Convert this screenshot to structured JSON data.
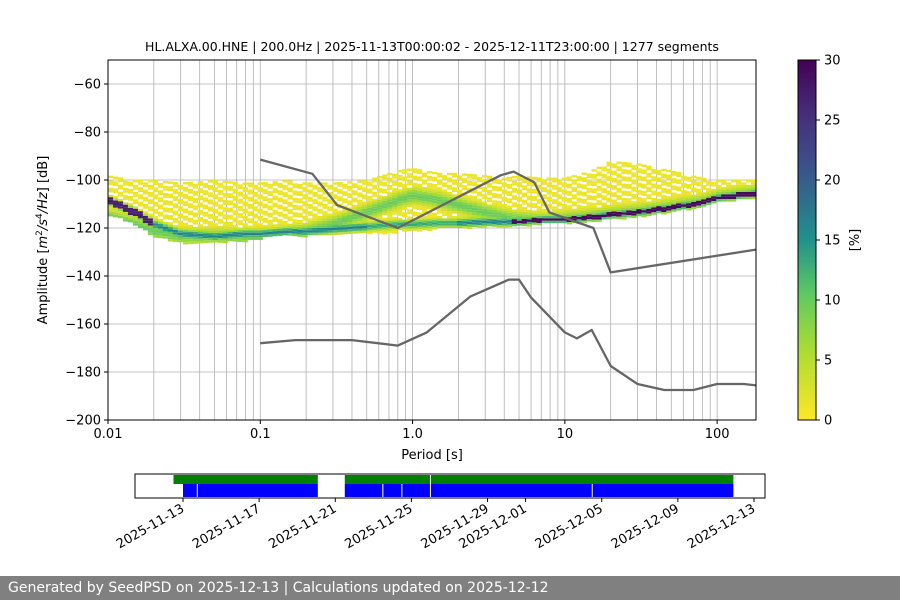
{
  "chart_data": [
    {
      "type": "heatmap",
      "title": "HL.ALXA.00.HNE | 200.0Hz | 2025-11-13T00:00:02 - 2025-12-11T23:00:00 | 1277 segments",
      "xlabel": "Period [s]",
      "ylabel": "Amplitude [m²/s⁴/Hz] [dB]",
      "xscale": "log",
      "xlim": [
        0.01,
        180
      ],
      "ylim": [
        -200,
        -50
      ],
      "xticks": [
        0.01,
        0.1,
        1,
        10,
        100
      ],
      "xtick_labels": [
        "0.01",
        "0.1",
        "1.0",
        "10",
        "100"
      ],
      "yticks": [
        -200,
        -180,
        -160,
        -140,
        -120,
        -100,
        -80,
        -60
      ],
      "ytick_labels": [
        "−200",
        "−180",
        "−160",
        "−140",
        "−120",
        "−100",
        "−80",
        "−60"
      ],
      "grid": true,
      "colorbar": {
        "label": "[%]",
        "colormap": "viridis_r",
        "range": [
          0,
          30
        ],
        "ticks": [
          0,
          5,
          10,
          15,
          20,
          25,
          30
        ],
        "tick_labels": [
          "0",
          "5",
          "10",
          "15",
          "20",
          "25",
          "30"
        ]
      },
      "psd_band": {
        "description": "probability density of PSD values",
        "periods": [
          0.01,
          0.015,
          0.02,
          0.03,
          0.05,
          0.08,
          0.1,
          0.15,
          0.2,
          0.3,
          0.5,
          0.8,
          1.0,
          1.5,
          2.0,
          3.0,
          4.0,
          5.0,
          7.0,
          10,
          15,
          20,
          30,
          50,
          80,
          100,
          180
        ],
        "mode_db": [
          -108,
          -113,
          -118,
          -122,
          -123,
          -122,
          -122,
          -121,
          -121,
          -120,
          -119,
          -118,
          -118,
          -117.5,
          -117.5,
          -117,
          -117,
          -117,
          -116,
          -116,
          -115,
          -114,
          -113,
          -111,
          -109,
          -107,
          -105
        ],
        "upper_db": [
          -98,
          -100,
          -100,
          -101,
          -100,
          -101,
          -101,
          -100,
          -101,
          -101,
          -100,
          -96,
          -95,
          -97,
          -97,
          -98,
          -99,
          -98,
          -99,
          -99,
          -96,
          -92,
          -93,
          -96,
          -99,
          -100,
          -100
        ],
        "lower_db": [
          -114,
          -118,
          -123,
          -126,
          -126,
          -125,
          -124,
          -123,
          -123,
          -122,
          -122,
          -122,
          -121,
          -120,
          -120,
          -119,
          -119,
          -119,
          -118,
          -118,
          -117,
          -116,
          -115,
          -113,
          -111,
          -109,
          -107
        ],
        "high_density_db": [
          -115,
          -118,
          -121,
          -123,
          -123,
          -123,
          -123,
          -122,
          -121,
          -118,
          -113,
          -108,
          -106,
          -108,
          -110,
          -113,
          -115,
          -116,
          -116.5,
          -116,
          -115,
          -114,
          -113,
          -111,
          -109,
          -107,
          -105
        ]
      },
      "series": [
        {
          "x": [
            0.1,
            0.22,
            0.32,
            0.8,
            3.8,
            4.6,
            6.3,
            7.9,
            15.4,
            20,
            180
          ],
          "y": [
            -91.5,
            -97.4,
            -110.5,
            -120,
            -98,
            -96.5,
            -101,
            -113.5,
            -120,
            -138.5,
            -129
          ],
          "color": "#666666"
        },
        {
          "x": [
            0.1,
            0.17,
            0.4,
            0.8,
            1.24,
            2.4,
            4.3,
            5.0,
            6.0,
            10,
            12,
            15,
            20,
            30,
            45,
            70,
            100,
            150,
            180
          ],
          "y": [
            -168,
            -166.7,
            -166.7,
            -169,
            -163.5,
            -148.5,
            -141.5,
            -141.5,
            -149,
            -163.5,
            -166,
            -162.5,
            -177.5,
            -185,
            -187.5,
            -187.5,
            -185,
            -185,
            -185.6
          ],
          "color": "#666666"
        }
      ]
    },
    {
      "type": "timeline",
      "xlabel": "",
      "ylabel": "",
      "date_range": [
        "2025-11-10",
        "2025-12-13"
      ],
      "ticks": [
        "2025-11-13",
        "2025-11-17",
        "2025-11-21",
        "2025-11-25",
        "2025-11-29",
        "2025-12-01",
        "2025-12-05",
        "2025-12-09",
        "2025-12-13"
      ],
      "tick_labels": [
        "2025-11-13",
        "2025-11-17",
        "2025-11-21",
        "2025-11-25",
        "2025-11-29",
        "2025-12-01",
        "2025-12-05",
        "2025-12-09",
        "2025-12-13"
      ],
      "series": [
        {
          "color": "#008000",
          "spans": [
            [
              "2025-11-12T12:00",
              "2025-11-20T02:00"
            ],
            [
              "2025-11-21T12:00",
              "2025-12-11T22:00"
            ]
          ]
        },
        {
          "color": "#0000ff",
          "spans": [
            [
              "2025-11-13T00:00",
              "2025-11-20T02:00"
            ],
            [
              "2025-11-21T12:00",
              "2025-12-11T22:00"
            ]
          ],
          "gaps": [
            "2025-11-13T18:00",
            "2025-11-23T12:00",
            "2025-11-24T12:00",
            "2025-11-26T00:00",
            "2025-12-04T12:00"
          ]
        }
      ]
    }
  ],
  "footer": {
    "text": "Generated by SeedPSD on 2025-12-13 | Calculations updated on 2025-12-12"
  },
  "colors": {
    "curve": "#666666",
    "grid": "#b0b0b0",
    "footer_bg": "#808080",
    "timeline_green": "#008000",
    "timeline_blue": "#0000ff"
  }
}
